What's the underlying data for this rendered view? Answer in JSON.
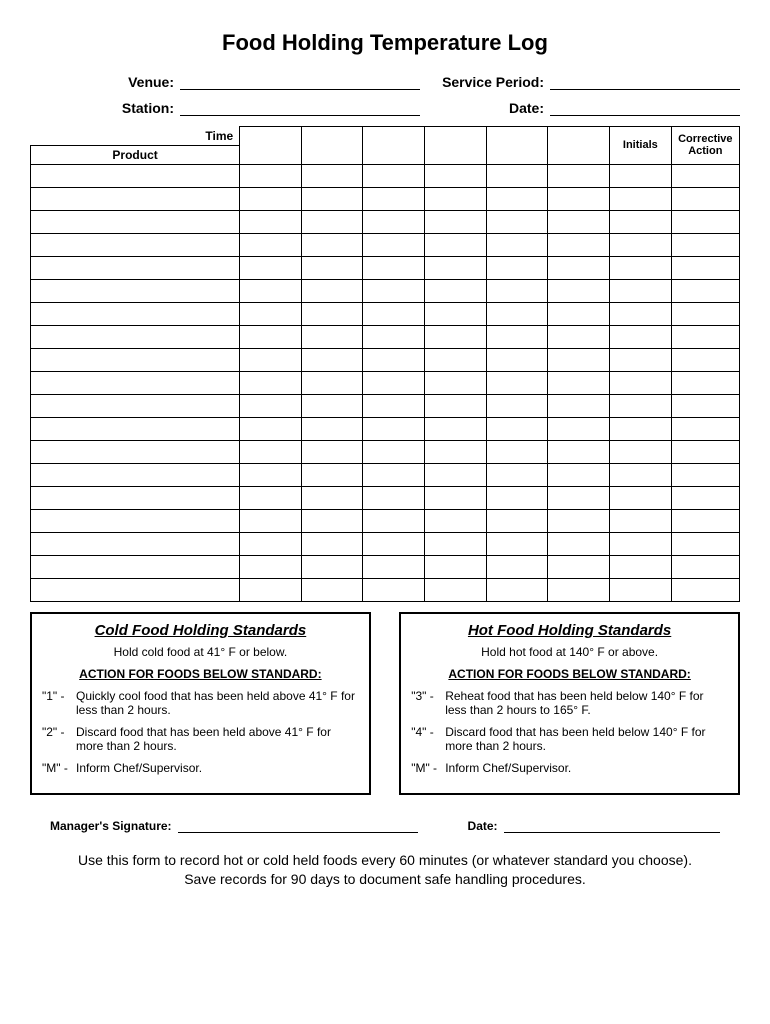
{
  "title": "Food Holding Temperature Log",
  "fields": {
    "venue_label": "Venue:",
    "service_period_label": "Service Period:",
    "station_label": "Station:",
    "date_label": "Date:"
  },
  "table": {
    "time_label": "Time",
    "product_label": "Product",
    "initials_label": "Initials",
    "corrective_label_1": "Corrective",
    "corrective_label_2": "Action",
    "time_columns": 6,
    "body_rows": 19,
    "col_widths": {
      "product": 190,
      "time": 56,
      "initials": 56,
      "corrective": 62
    }
  },
  "standards": {
    "cold": {
      "title": "Cold Food Holding Standards",
      "sub": "Hold cold food at 41° F or below.",
      "action_header": "ACTION FOR FOODS BELOW STANDARD:",
      "items": [
        {
          "code": "\"1\" -",
          "text": "Quickly cool food that has been held above 41° F for less than 2 hours."
        },
        {
          "code": "\"2\" -",
          "text": "Discard food that has been held above 41° F for more than 2 hours."
        },
        {
          "code": "\"M\" -",
          "text": "Inform Chef/Supervisor."
        }
      ]
    },
    "hot": {
      "title": "Hot Food Holding Standards",
      "sub": "Hold hot food at 140° F or above.",
      "action_header": "ACTION FOR FOODS BELOW STANDARD:",
      "items": [
        {
          "code": "\"3\" -",
          "text": "Reheat food that has been held below 140° F for less than 2 hours to 165° F."
        },
        {
          "code": "\"4\" -",
          "text": "Discard food that has been held below 140° F for more than 2 hours."
        },
        {
          "code": "\"M\" -",
          "text": "Inform Chef/Supervisor."
        }
      ]
    }
  },
  "signature": {
    "manager_label": "Manager's Signature:",
    "date_label": "Date:"
  },
  "footer": {
    "line1": "Use this form to record hot or cold held foods every 60 minutes (or whatever standard you choose).",
    "line2": "Save records for 90 days to document safe handling procedures."
  }
}
